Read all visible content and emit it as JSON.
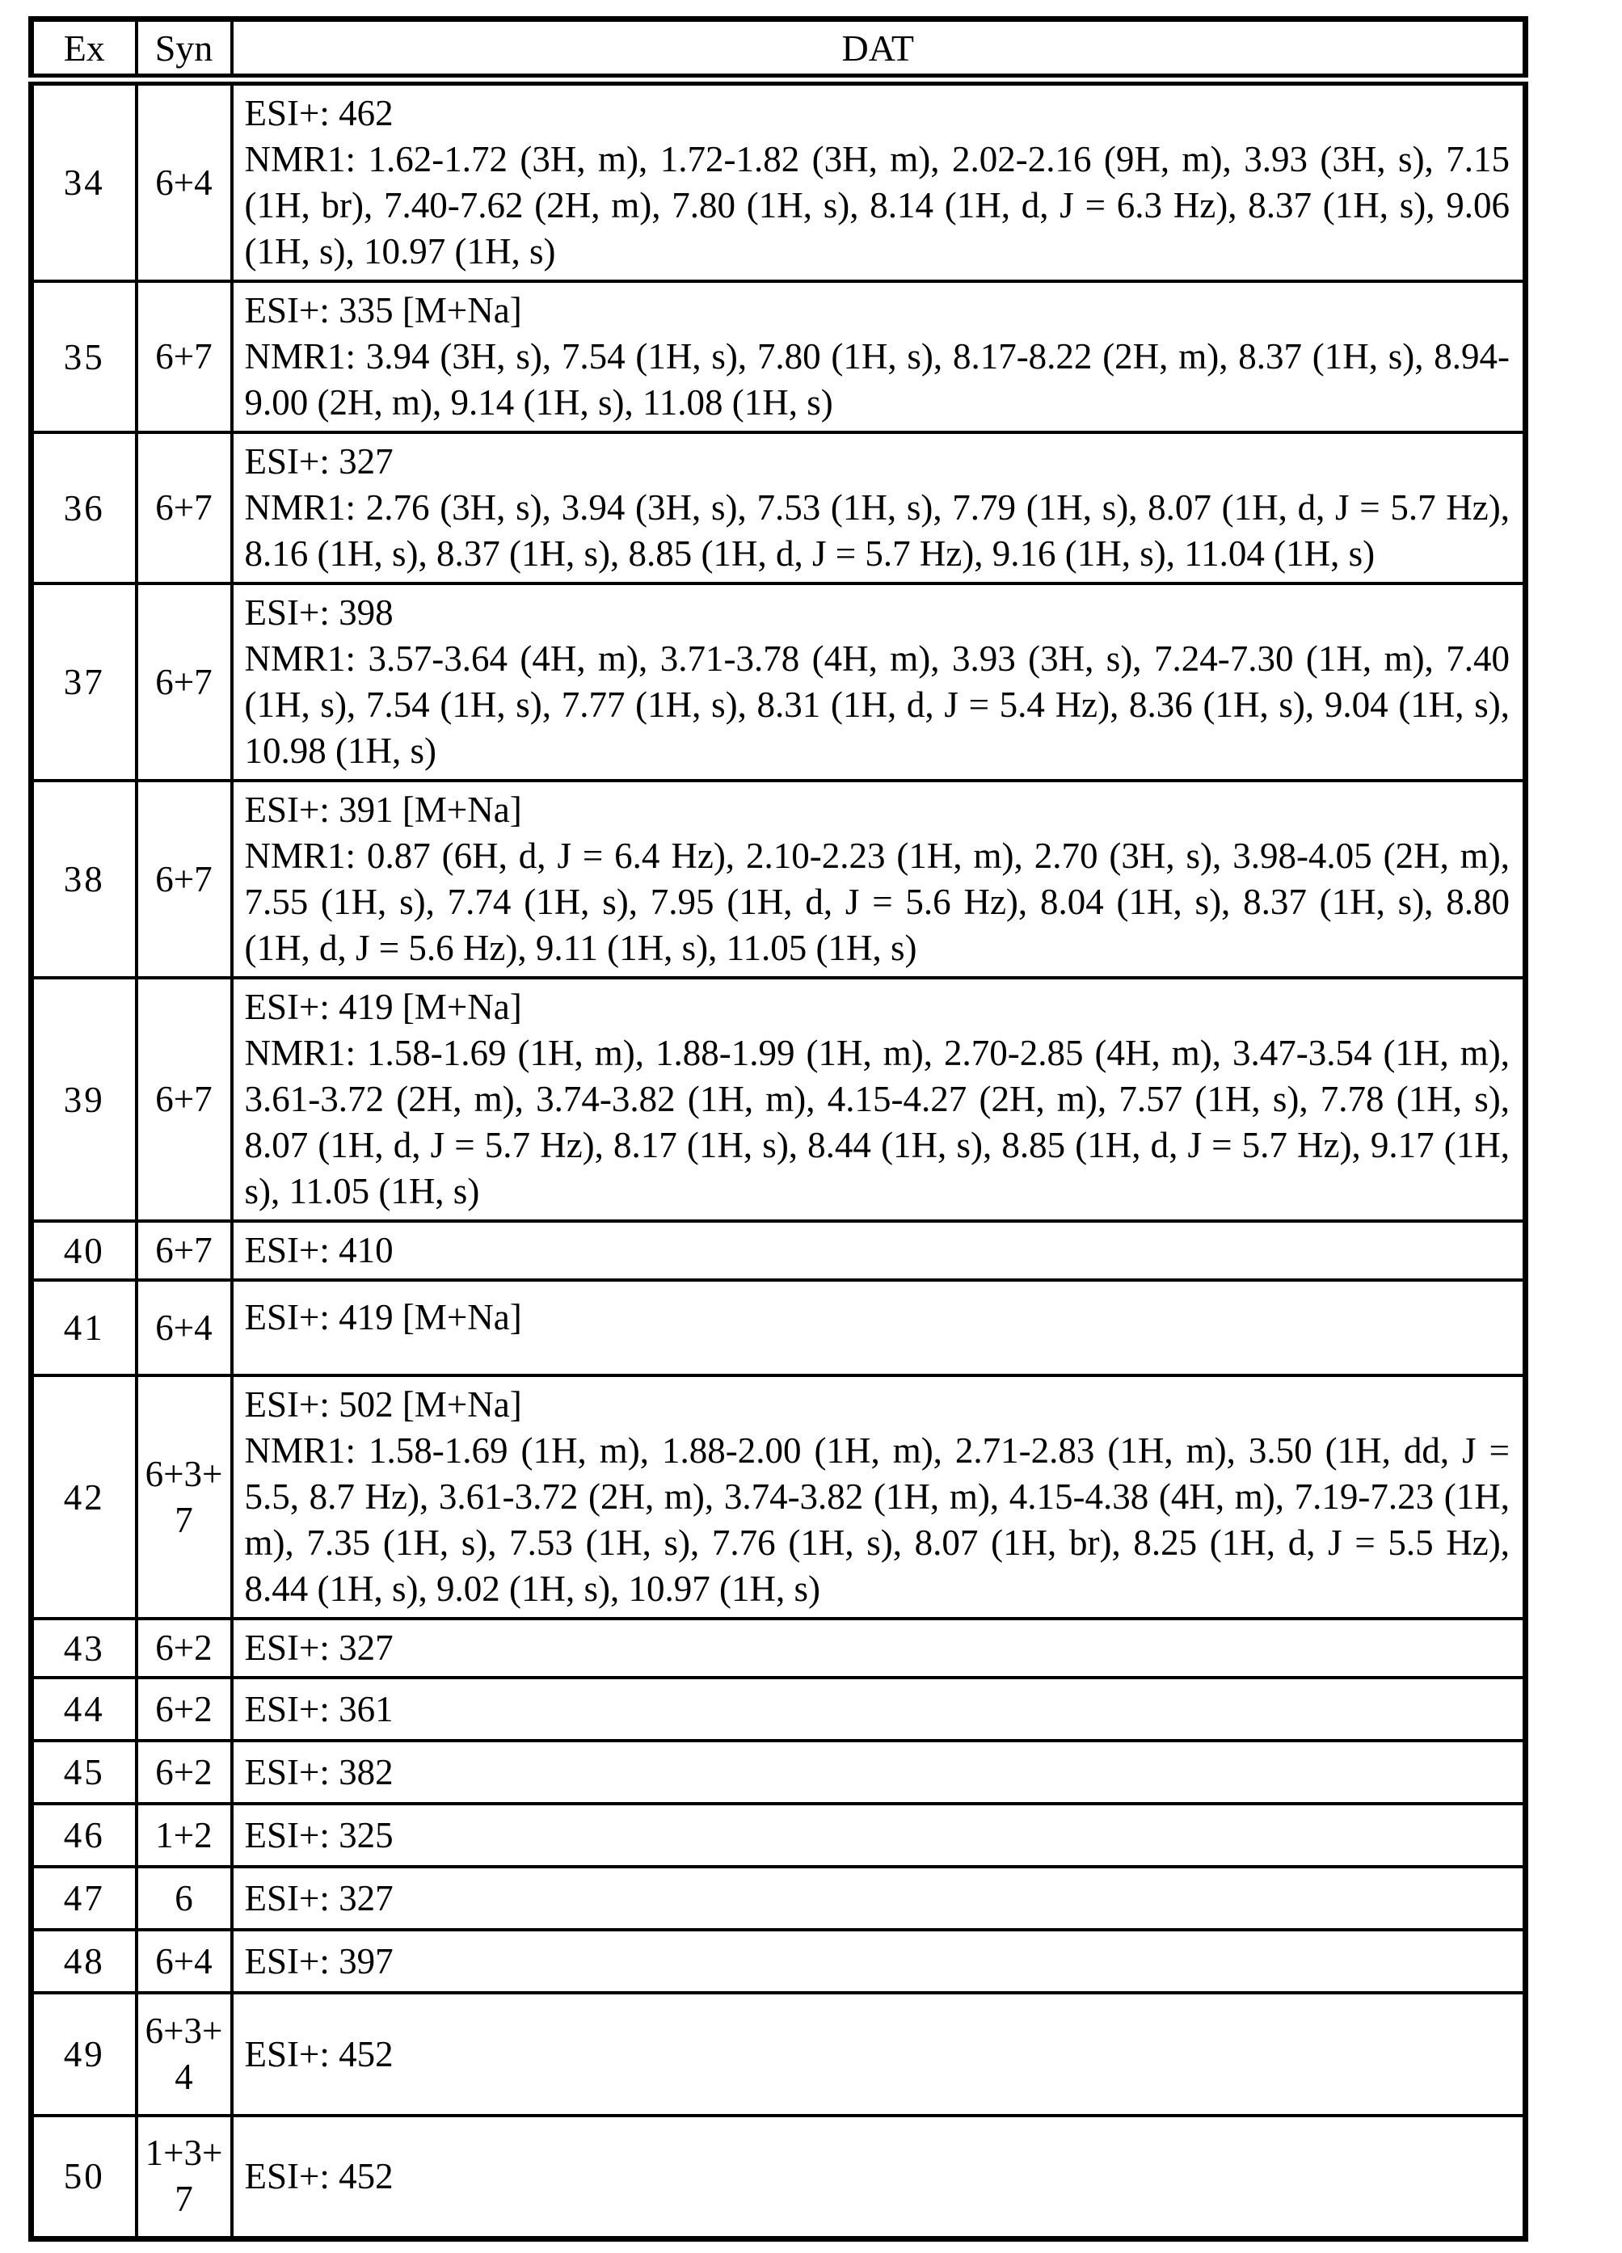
{
  "header": {
    "ex": "Ex",
    "syn": "Syn",
    "dat": "DAT"
  },
  "rows": [
    {
      "ex": "34",
      "syn": "6+4",
      "esi": "ESI+: 462",
      "nmr": "NMR1: 1.62-1.72 (3H, m), 1.72-1.82 (3H, m), 2.02-2.16 (9H, m), 3.93 (3H, s), 7.15 (1H, br), 7.40-7.62 (2H, m), 7.80 (1H, s), 8.14 (1H, d, J = 6.3 Hz), 8.37 (1H, s), 9.06 (1H, s), 10.97 (1H, s)"
    },
    {
      "ex": "35",
      "syn": "6+7",
      "esi": "ESI+: 335 [M+Na]",
      "nmr": "NMR1: 3.94 (3H, s), 7.54 (1H, s), 7.80 (1H, s), 8.17-8.22 (2H, m), 8.37 (1H, s), 8.94-9.00 (2H, m), 9.14 (1H, s), 11.08 (1H, s)"
    },
    {
      "ex": "36",
      "syn": "6+7",
      "esi": "ESI+: 327",
      "nmr": "NMR1: 2.76 (3H, s), 3.94 (3H, s), 7.53 (1H, s), 7.79 (1H, s), 8.07 (1H, d, J = 5.7 Hz), 8.16 (1H, s), 8.37 (1H, s), 8.85 (1H, d, J = 5.7 Hz), 9.16 (1H, s), 11.04 (1H, s)"
    },
    {
      "ex": "37",
      "syn": "6+7",
      "esi": "ESI+: 398",
      "nmr": "NMR1: 3.57-3.64 (4H, m), 3.71-3.78 (4H, m), 3.93 (3H, s), 7.24-7.30 (1H, m), 7.40 (1H, s), 7.54 (1H, s), 7.77 (1H, s), 8.31 (1H, d, J = 5.4 Hz), 8.36 (1H, s), 9.04 (1H, s), 10.98 (1H, s)"
    },
    {
      "ex": "38",
      "syn": "6+7",
      "esi": "ESI+: 391 [M+Na]",
      "nmr": "NMR1: 0.87 (6H, d, J = 6.4 Hz), 2.10-2.23 (1H, m), 2.70 (3H, s), 3.98-4.05 (2H, m), 7.55 (1H, s), 7.74 (1H, s), 7.95 (1H, d, J = 5.6 Hz), 8.04 (1H, s), 8.37 (1H, s), 8.80 (1H, d, J = 5.6 Hz), 9.11 (1H, s), 11.05 (1H, s)"
    },
    {
      "ex": "39",
      "syn": "6+7",
      "esi": "ESI+: 419 [M+Na]",
      "nmr": "NMR1: 1.58-1.69 (1H, m), 1.88-1.99 (1H, m), 2.70-2.85 (4H, m), 3.47-3.54 (1H, m), 3.61-3.72 (2H, m), 3.74-3.82 (1H, m), 4.15-4.27 (2H, m), 7.57 (1H, s), 7.78 (1H, s), 8.07 (1H, d, J = 5.7 Hz), 8.17 (1H, s), 8.44 (1H, s), 8.85 (1H, d, J = 5.7 Hz), 9.17 (1H, s), 11.05 (1H, s)"
    },
    {
      "ex": "40",
      "syn": "6+7",
      "esi": "ESI+: 410",
      "nmr": ""
    },
    {
      "ex": "41",
      "syn": "6+4",
      "esi": "ESI+: 419 [M+Na]",
      "nmr": ""
    },
    {
      "ex": "42",
      "syn": "6+3+7",
      "esi": "ESI+: 502 [M+Na]",
      "nmr": "NMR1: 1.58-1.69 (1H, m), 1.88-2.00 (1H, m), 2.71-2.83 (1H, m), 3.50 (1H, dd, J = 5.5, 8.7 Hz), 3.61-3.72 (2H, m), 3.74-3.82 (1H, m), 4.15-4.38 (4H, m), 7.19-7.23 (1H, m), 7.35 (1H, s), 7.53 (1H, s), 7.76 (1H, s), 8.07 (1H, br), 8.25 (1H, d, J = 5.5 Hz), 8.44 (1H, s), 9.02 (1H, s), 10.97 (1H, s)"
    },
    {
      "ex": "43",
      "syn": "6+2",
      "esi": "ESI+: 327",
      "nmr": ""
    },
    {
      "ex": "44",
      "syn": "6+2",
      "esi": "ESI+: 361",
      "nmr": ""
    },
    {
      "ex": "45",
      "syn": "6+2",
      "esi": "ESI+: 382",
      "nmr": ""
    },
    {
      "ex": "46",
      "syn": "1+2",
      "esi": "ESI+: 325",
      "nmr": ""
    },
    {
      "ex": "47",
      "syn": "6",
      "esi": "ESI+: 327",
      "nmr": ""
    },
    {
      "ex": "48",
      "syn": "6+4",
      "esi": "ESI+: 397",
      "nmr": ""
    },
    {
      "ex": "49",
      "syn": "6+3+4",
      "esi": "ESI+: 452",
      "nmr": ""
    },
    {
      "ex": "50",
      "syn": "1+3+7",
      "esi": "ESI+: 452",
      "nmr": ""
    }
  ]
}
